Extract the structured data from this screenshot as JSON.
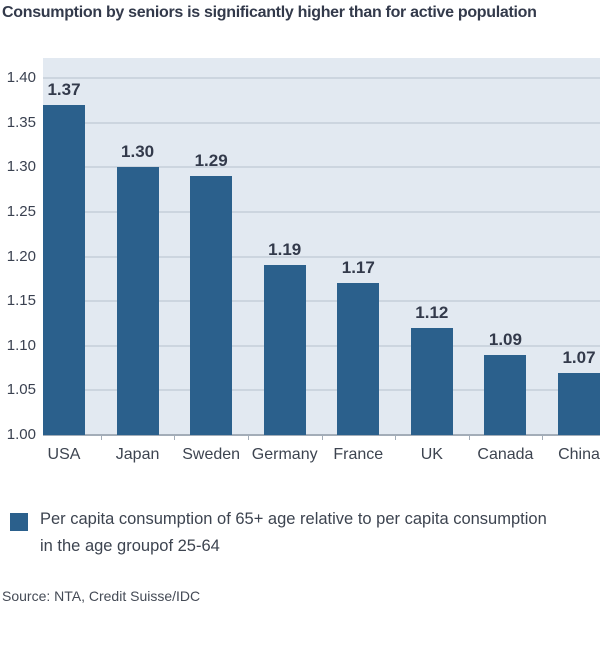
{
  "title": "Consumption by seniors is significantly higher than for active population",
  "colors": {
    "bar": "#2b608c",
    "plot_bg": "#e2e9f1",
    "gridline": "#ccd5df",
    "axis_line": "#a3adb8",
    "title_text": "#333a4b",
    "label_text": "#3d4450"
  },
  "chart_data": {
    "type": "bar",
    "categories": [
      "USA",
      "Japan",
      "Sweden",
      "Germany",
      "France",
      "UK",
      "Canada",
      "China"
    ],
    "values": [
      1.37,
      1.3,
      1.29,
      1.19,
      1.17,
      1.12,
      1.09,
      1.07
    ],
    "value_labels": [
      "1.37",
      "1.30",
      "1.29",
      "1.19",
      "1.17",
      "1.12",
      "1.09",
      "1.07"
    ],
    "title": "Consumption by seniors is significantly higher than for active population",
    "xlabel": "",
    "ylabel": "",
    "ylim": [
      1.0,
      1.4
    ],
    "ytick_step": 0.05,
    "ytick_labels": [
      "1.00",
      "1.05",
      "1.10",
      "1.15",
      "1.20",
      "1.25",
      "1.30",
      "1.35",
      "1.40"
    ],
    "grid": true,
    "legend_position": "bottom"
  },
  "legend": {
    "line1": "Per capita consumption of 65+ age relative to per capita consumption",
    "line2": "in the age groupof 25-64"
  },
  "source": "Source: NTA, Credit Suisse/IDC"
}
